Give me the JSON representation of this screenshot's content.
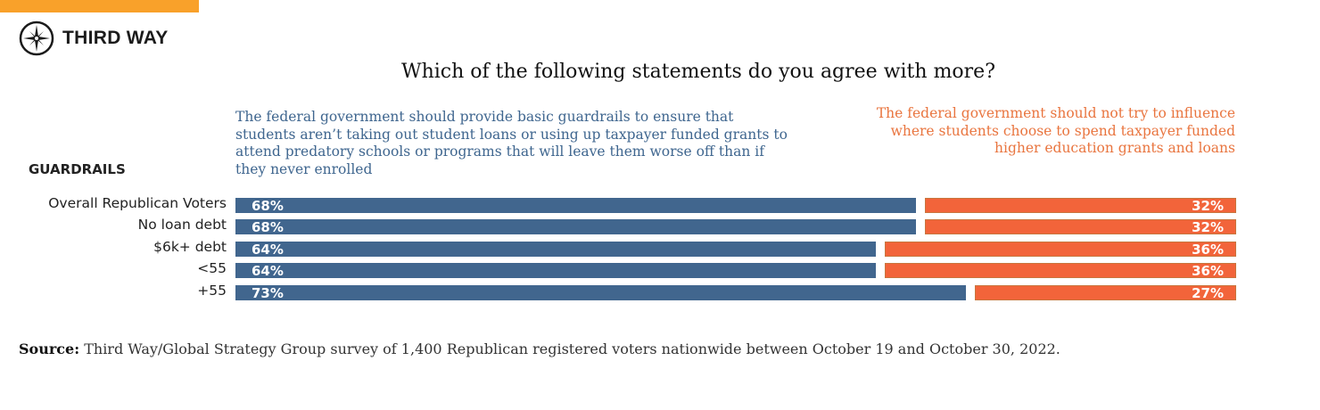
{
  "brand": {
    "name": "THIRD WAY",
    "accent": "#f9a12a"
  },
  "chart_data": {
    "type": "bar",
    "stacked": true,
    "orientation": "horizontal",
    "title": "Which of the following statements do you agree with more?",
    "section_label": "GUARDRAILS",
    "categories": [
      "Overall Republican Voters",
      "No loan debt",
      "$6k+ debt",
      "<55",
      "+55"
    ],
    "series": [
      {
        "name": "The federal government should provide basic guardrails to ensure that students aren’t taking out student loans or using up taxpayer funded grants to attend predatory schools or programs that will leave them worse off than if they never enrolled",
        "values": [
          68,
          68,
          64,
          64,
          73
        ],
        "labels": [
          "68%",
          "68%",
          "64%",
          "64%",
          "73%"
        ],
        "color": "#41668e"
      },
      {
        "name": "The federal government should not try to influence where students choose to spend taxpayer funded higher education grants and loans",
        "values": [
          32,
          32,
          36,
          36,
          27
        ],
        "labels": [
          "32%",
          "32%",
          "36%",
          "36%",
          "27%"
        ],
        "color": "#f2643a"
      }
    ],
    "xlim": [
      0,
      100
    ]
  },
  "source": {
    "label": "Source:",
    "text": " Third Way/Global Strategy Group survey of 1,400 Republican registered voters nationwide between October 19 and October 30, 2022."
  }
}
